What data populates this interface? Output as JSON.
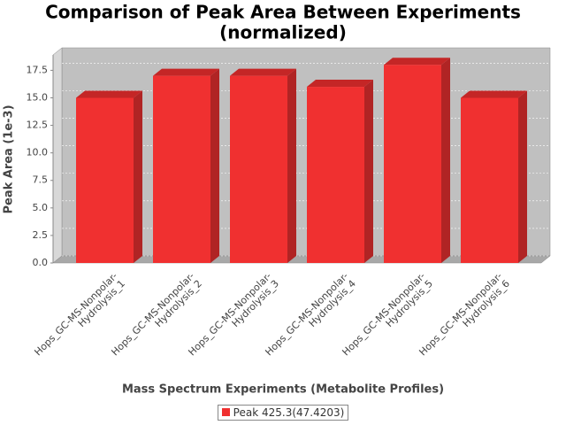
{
  "chart_data": {
    "type": "bar3d",
    "title": [
      "Comparison of Peak Area Between Experiments",
      "(normalized)"
    ],
    "x_label": "Mass Spectrum Experiments (Metabolite Profiles)",
    "y_label": "Peak Area (1e-3)",
    "categories": [
      "Hops_GC-MS-Nonpolar-Hydrolysis_1",
      "Hops_GC-MS-Nonpolar-Hydrolysis_2",
      "Hops_GC-MS-Nonpolar-Hydrolysis_3",
      "Hops_GC-MS-Nonpolar-Hydrolysis_4",
      "Hops_GC-MS-Nonpolar-Hydrolysis_5",
      "Hops_GC-MS-Nonpolar-Hydrolysis_6"
    ],
    "series": [
      {
        "name": "Peak 425.3(47.4203)",
        "color": "#f03030",
        "values": [
          15,
          17,
          17,
          16,
          18,
          15
        ]
      }
    ],
    "ylim": [
      0,
      18.9
    ],
    "yticks": [
      {
        "value": 0,
        "label": "0.0"
      },
      2.5,
      {
        "value": 5,
        "label": "5.0"
      },
      7.5,
      {
        "value": 10,
        "label": "10.0"
      },
      12.5,
      {
        "value": 15,
        "label": "15.0"
      },
      17.5
    ],
    "grid": true,
    "legend": "bottom"
  }
}
